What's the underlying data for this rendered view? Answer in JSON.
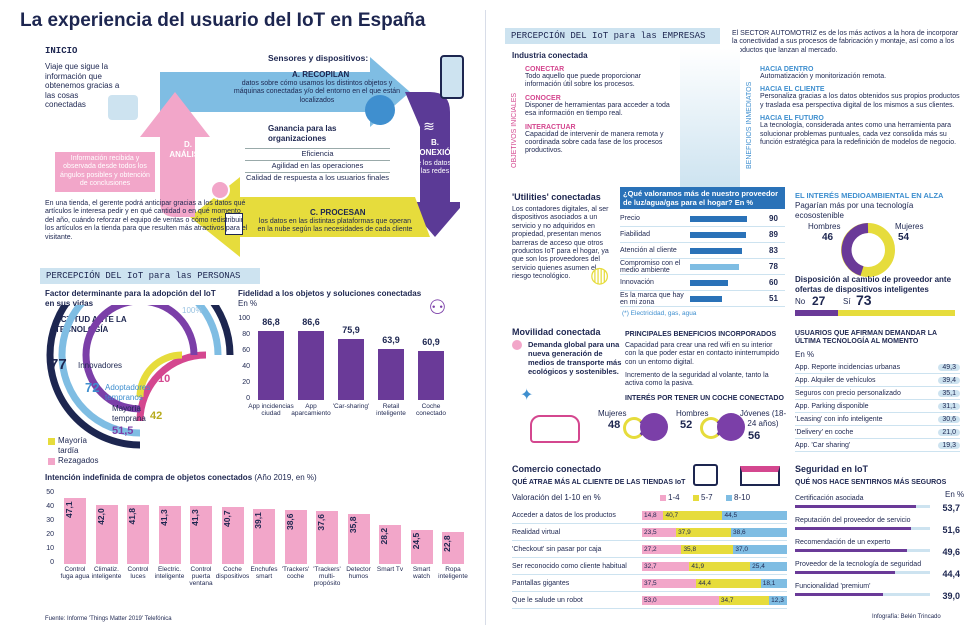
{
  "title": "La experiencia del usuario del IoT en España",
  "inicio": {
    "label": "INICIO",
    "text": "Viaje que sigue la información que obtenemos gracias a las cosas conectadas"
  },
  "cycle": {
    "heading": "Sensores y dispositivos:",
    "a_title": "A. RECOPILAN",
    "a_text": "datos sobre cómo usamos los distintos objetos y máquinas conectadas y/o del entorno en el que están localizados",
    "b_title": "B. CONEXIÓN",
    "b_text": "de los datos a las redes",
    "c_title": "C. PROCESAN",
    "c_text": "los datos en las distintas plataformas que operan en la nube según las necesidades de cada cliente",
    "d_title": "D. ANÁLISIS",
    "d_text": "Información recibida y observada desde todos los ángulos posibles y obtención de conclusiones",
    "gain_title": "Ganancia para las organizaciones",
    "gains": [
      "Eficiencia",
      "Agilidad en las operaciones",
      "Calidad de respuesta a los usuarios finales"
    ],
    "example": "En una tienda, el gerente podrá anticipar gracias a los datos qué artículos le interesa pedir y en qué cantidad o en qué momento del año, cuándo reforzar el equipo de ventas o cómo redistribuir los artículos en la tienda para que resulten más atractivos para el visitante."
  },
  "personas": {
    "section": "PERCEPCIÓN DEL IoT para las PERSONAS",
    "factor_title": "Factor determinante para la adopción del IoT en sus vidas",
    "actitud": "ACTITUD ANTE LA TECNOLOGÍA",
    "rings": [
      {
        "label": "Innovadores",
        "value": "77",
        "color": "#1d2650"
      },
      {
        "label": "Adoptadores tempranos",
        "value": "72",
        "color": "#3f8fcf"
      },
      {
        "label": "",
        "value": "10",
        "color": "#d4478f"
      },
      {
        "label": "Mayoría temprana",
        "value": "51,5",
        "color": "#7b3fa8"
      },
      {
        "label": "",
        "value": "42",
        "color": "#e0d43a"
      }
    ],
    "legend": [
      "Mayoría tardía",
      "Rezagados"
    ],
    "hundred": "100%",
    "fid_title": "Fidelidad a los objetos y soluciones conectadas",
    "fid_unit": "En %",
    "fid_ticks": [
      "100",
      "80",
      "60",
      "40",
      "20",
      "0"
    ],
    "fid": [
      {
        "label": "App incidencias ciudad",
        "value": 86.8,
        "text": "86,8"
      },
      {
        "label": "App aparcamiento",
        "value": 86.6,
        "text": "86,6"
      },
      {
        "label": "'Car-sharing'",
        "value": 75.9,
        "text": "75,9"
      },
      {
        "label": "Retail inteligente",
        "value": 63.9,
        "text": "63,9"
      },
      {
        "label": "Coche conectado",
        "value": 60.9,
        "text": "60,9"
      }
    ],
    "int_title": "Intención indefinida de compra de objetos conectados",
    "int_sub": "(Año 2019, en %)",
    "int_ticks": [
      "50",
      "40",
      "30",
      "20",
      "10",
      "0"
    ],
    "intention": [
      {
        "label": "Control fuga agua",
        "value": 47.1,
        "text": "47,1"
      },
      {
        "label": "Climatiz. inteligente",
        "value": 42.0,
        "text": "42,0"
      },
      {
        "label": "Control luces",
        "value": 41.8,
        "text": "41,8"
      },
      {
        "label": "Electric. inteligente",
        "value": 41.3,
        "text": "41,3"
      },
      {
        "label": "Control puerta ventana",
        "value": 41.3,
        "text": "41,3"
      },
      {
        "label": "Coche dispositivos",
        "value": 40.7,
        "text": "40,7"
      },
      {
        "label": "Enchufes smart",
        "value": 39.1,
        "text": "39,1"
      },
      {
        "label": "'Trackers' coche",
        "value": 38.6,
        "text": "38,6"
      },
      {
        "label": "'Trackers' multi-propósito",
        "value": 37.6,
        "text": "37,6"
      },
      {
        "label": "Detector humos",
        "value": 35.8,
        "text": "35,8"
      },
      {
        "label": "Smart Tv",
        "value": 28.2,
        "text": "28,2"
      },
      {
        "label": "Smart watch",
        "value": 24.5,
        "text": "24,5"
      },
      {
        "label": "Ropa inteligente",
        "value": 22.8,
        "text": "22,8"
      }
    ],
    "source": "Fuente: Informe 'Things Matter 2019' Telefónica"
  },
  "empresas": {
    "section": "PERCEPCIÓN DEL IoT para las EMPRESAS",
    "auto": "El SECTOR AUTOMOTRIZ es de los más activos a la hora de incorporar la conectividad a sus procesos de fabricación y montaje, así como a los productos que lanzan al mercado.",
    "industria": "Industria conectada",
    "obj_label": "OBJETIVOS INICIALES",
    "ben_label": "BENEFICIOS INMEDIATOS",
    "objetivos": [
      {
        "t": "CONECTAR",
        "d": "Todo aquello que puede proporcionar información útil sobre los procesos."
      },
      {
        "t": "CONOCER",
        "d": "Disponer de herramientas para acceder a toda esa información en tiempo real."
      },
      {
        "t": "INTERACTUAR",
        "d": "Capacidad de intervenir de manera remota y coordinada sobre cada fase de los procesos productivos."
      }
    ],
    "beneficios": [
      {
        "t": "HACIA DENTRO",
        "d": "Automatización y monitorización remota."
      },
      {
        "t": "HACIA EL CLIENTE",
        "d": "Personaliza gracias a los datos obtenidos sus propios productos y traslada esa perspectiva digital de los mismos a sus clientes."
      },
      {
        "t": "HACIA EL FUTURO",
        "d": "La tecnología, considerada antes como una herramienta para solucionar problemas puntuales, cada vez consolida más su función estratégica para la redefinición de modelos de negocio."
      }
    ]
  },
  "utilities": {
    "title": "'Utilities' conectadas",
    "text": "Los contadores digitales, al ser dispositivos asociados a un servicio y no adquiridos en propiedad, presentan menos barreras de acceso que otros productos IoT para el hogar, ya que son los proveedores del servicio quienes asumen el riesgo tecnológico.",
    "q": "¿Qué valoramos más de nuestro proveedor de luz/agua/gas para el hogar? En %",
    "rows": [
      {
        "label": "Precio",
        "value": 90
      },
      {
        "label": "Fiabilidad",
        "value": 89
      },
      {
        "label": "Atención al cliente",
        "value": 83
      },
      {
        "label": "Compromiso con el medio ambiente",
        "value": 78
      },
      {
        "label": "Innovación",
        "value": 60
      },
      {
        "label": "Es la marca que hay en mi zona",
        "value": 51
      }
    ],
    "note": "(*) Electricidad, gas, agua",
    "env_title": "EL INTERÉS MEDIOAMBIENTAL EN ALZA",
    "env_sub": "Pagarían más por una tecnología ecosostenible",
    "hombres": "Hombres",
    "hombres_v": "46",
    "mujeres": "Mujeres",
    "mujeres_v": "54",
    "disp": "Disposición al cambio de proveedor ante ofertas de dispositivos inteligentes",
    "no": "No",
    "no_v": "27",
    "si": "Sí",
    "si_v": "73"
  },
  "movilidad": {
    "title": "Movilidad conectada",
    "text": "Demanda global para una nueva generación de medios de transporte más ecológicos y sostenibles.",
    "ben_title": "PRINCIPALES BENEFICIOS INCORPORADOS",
    "b1": "Capacidad para crear una red wifi en su interior con la que poder estar en contacto ininterrumpido con un entorno digital.",
    "b2": "Incremento de la seguridad al volante, tanto la activa como la pasiva.",
    "coche_title": "INTERÉS POR TENER UN COCHE CONECTADO",
    "mujeres": "Mujeres",
    "mujeres_v": "48",
    "hombres": "Hombres",
    "hombres_v": "52",
    "jovenes": "Jóvenes (18-24 años)",
    "jovenes_v": "56",
    "demand_title": "USUARIOS QUE AFIRMAN DEMANDAR LA ÚLTIMA TECNOLOGÍA AL MOMENTO",
    "demand_unit": "En %",
    "demand": [
      {
        "label": "App. Reporte incidencias urbanas",
        "v": "49,3"
      },
      {
        "label": "App. Alquiler de vehículos",
        "v": "39,4"
      },
      {
        "label": "Seguros con precio personalizado",
        "v": "35,1"
      },
      {
        "label": "App. Parking disponible",
        "v": "31,1"
      },
      {
        "label": "'Leasing' con info inteligente",
        "v": "30,6"
      },
      {
        "label": "'Delivery' en coche",
        "v": "21,0"
      },
      {
        "label": "App. 'Car sharing'",
        "v": "19,3"
      }
    ]
  },
  "comercio": {
    "title": "Comercio conectado",
    "sub": "QUÉ ATRAE MÁS AL CLIENTE DE LAS TIENDAS IoT",
    "scale": "Valoración del 1-10 en %",
    "legend": [
      "1-4",
      "5-7",
      "8-10"
    ],
    "rows": [
      {
        "label": "Acceder a datos de los productos",
        "a": 14.8,
        "b": 40.7,
        "c": 44.5,
        "at": "14,8",
        "bt": "40,7",
        "ct": "44,5"
      },
      {
        "label": "Realidad virtual",
        "a": 23.5,
        "b": 37.9,
        "c": 38.6,
        "at": "23,5",
        "bt": "37,9",
        "ct": "38,6"
      },
      {
        "label": "'Checkout' sin pasar por caja",
        "a": 27.2,
        "b": 35.8,
        "c": 37.0,
        "at": "27,2",
        "bt": "35,8",
        "ct": "37,0"
      },
      {
        "label": "Ser reconocido como cliente habitual",
        "a": 32.7,
        "b": 41.9,
        "c": 25.4,
        "at": "32,7",
        "bt": "41,9",
        "ct": "25,4"
      },
      {
        "label": "Pantallas gigantes",
        "a": 37.5,
        "b": 44.4,
        "c": 18.1,
        "at": "37,5",
        "bt": "44,4",
        "ct": "18,1"
      },
      {
        "label": "Que le salude un robot",
        "a": 53.0,
        "b": 34.7,
        "c": 12.3,
        "at": "53,0",
        "bt": "34,7",
        "ct": "12,3"
      }
    ]
  },
  "seguridad": {
    "title": "Seguridad en IoT",
    "sub": "QUÉ NOS HACE SENTIRNOS MÁS SEGUROS",
    "unit": "En %",
    "rows": [
      {
        "label": "Certificación asociada",
        "v": 53.7,
        "t": "53,7"
      },
      {
        "label": "Reputación del proveedor de servicio",
        "v": 51.6,
        "t": "51,6"
      },
      {
        "label": "Recomendación de un experto",
        "v": 49.6,
        "t": "49,6"
      },
      {
        "label": "Proveedor de la tecnología de seguridad",
        "v": 44.4,
        "t": "44,4"
      },
      {
        "label": "Funcionalidad 'premium'",
        "v": 39.0,
        "t": "39,0"
      }
    ]
  },
  "credit": "Infografía: Belén Trincado",
  "colors": {
    "navy": "#1d2650",
    "pink": "#f2a6c9",
    "magenta": "#d4478f",
    "purple": "#6a3a98",
    "blue": "#2a72b8",
    "lightblue": "#cde3f0",
    "yellow": "#e6dc3c"
  }
}
